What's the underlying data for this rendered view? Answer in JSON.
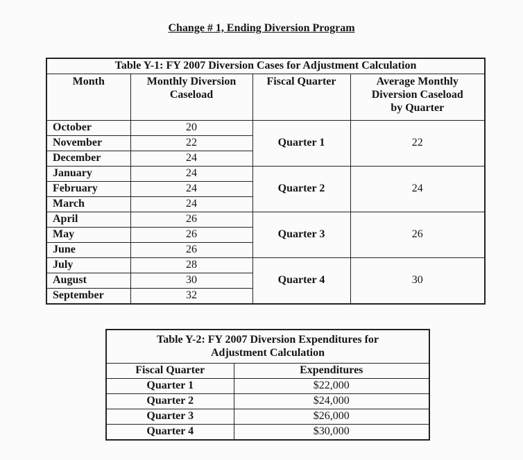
{
  "page": {
    "title": "Change # 1, Ending Diversion Program"
  },
  "table_y1": {
    "title": "Table Y-1: FY 2007 Diversion Cases for Adjustment Calculation",
    "columns": [
      "Month",
      "Monthly Diversion Caseload",
      "Fiscal Quarter",
      "Average Monthly Diversion Caseload by Quarter"
    ],
    "quarters": [
      {
        "label": "Quarter 1",
        "average": "22",
        "months": [
          {
            "name": "October",
            "caseload": "20"
          },
          {
            "name": "November",
            "caseload": "22"
          },
          {
            "name": "December",
            "caseload": "24"
          }
        ]
      },
      {
        "label": "Quarter 2",
        "average": "24",
        "months": [
          {
            "name": "January",
            "caseload": "24"
          },
          {
            "name": "February",
            "caseload": "24"
          },
          {
            "name": "March",
            "caseload": "24"
          }
        ]
      },
      {
        "label": "Quarter 3",
        "average": "26",
        "months": [
          {
            "name": "April",
            "caseload": "26"
          },
          {
            "name": "May",
            "caseload": "26"
          },
          {
            "name": "June",
            "caseload": "26"
          }
        ]
      },
      {
        "label": "Quarter 4",
        "average": "30",
        "months": [
          {
            "name": "July",
            "caseload": "28"
          },
          {
            "name": "August",
            "caseload": "30"
          },
          {
            "name": "September",
            "caseload": "32"
          }
        ]
      }
    ]
  },
  "table_y2": {
    "title": "Table Y-2: FY 2007 Diversion Expenditures for Adjustment Calculation",
    "columns": [
      "Fiscal Quarter",
      "Expenditures"
    ],
    "rows": [
      {
        "quarter": "Quarter 1",
        "expenditures": "$22,000"
      },
      {
        "quarter": "Quarter 2",
        "expenditures": "$24,000"
      },
      {
        "quarter": "Quarter 3",
        "expenditures": "$26,000"
      },
      {
        "quarter": "Quarter 4",
        "expenditures": "$30,000"
      }
    ]
  },
  "colors": {
    "background": "#fbfbfb",
    "border": "#222222",
    "text": "#151515"
  }
}
